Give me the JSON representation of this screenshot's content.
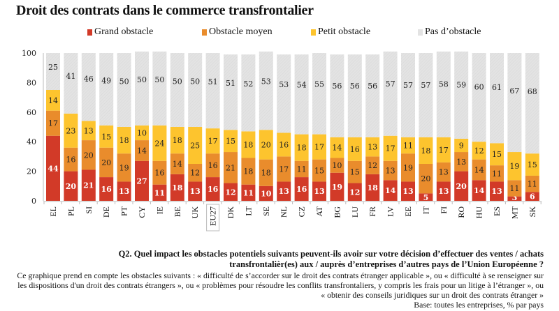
{
  "title": "Droit des contrats dans le commerce transfrontalier",
  "legend": [
    {
      "label": "Grand obstacle",
      "color": "#d23a28"
    },
    {
      "label": "Obstacle moyen",
      "color": "#e98c2c"
    },
    {
      "label": "Petit obstacle",
      "color": "#fdc42e"
    },
    {
      "label": "Pas d’obstacle",
      "color": "#e3e3e3"
    }
  ],
  "chart_data": {
    "type": "bar",
    "stacked": true,
    "title": "Droit des contrats dans le commerce transfrontalier",
    "xlabel": "",
    "ylabel": "",
    "ylim": [
      0,
      100
    ],
    "yticks": [
      0,
      20,
      40,
      60,
      80,
      100
    ],
    "grid": false,
    "legend_position": "top",
    "highlighted_category": "EU27",
    "categories": [
      "EL",
      "PL",
      "SI",
      "DE",
      "PT",
      "CY",
      "IE",
      "BE",
      "UK",
      "EU27",
      "DK",
      "LT",
      "SE",
      "NL",
      "CZ",
      "AT",
      "BG",
      "LU",
      "FR",
      "LV",
      "EE",
      "IT",
      "FI",
      "RO",
      "HU",
      "ES",
      "MT",
      "SK"
    ],
    "series": [
      {
        "name": "Grand obstacle",
        "color": "#d23a28",
        "label_color": "#ffffff",
        "values": [
          44,
          20,
          21,
          16,
          13,
          27,
          11,
          18,
          13,
          16,
          12,
          11,
          10,
          13,
          16,
          13,
          19,
          12,
          18,
          14,
          13,
          5,
          13,
          20,
          14,
          13,
          3,
          6
        ]
      },
      {
        "name": "Obstacle moyen",
        "color": "#e98c2c",
        "label_color": "#222222",
        "values": [
          17,
          16,
          20,
          20,
          19,
          14,
          16,
          14,
          12,
          16,
          21,
          18,
          18,
          17,
          11,
          15,
          10,
          15,
          12,
          13,
          19,
          20,
          13,
          13,
          14,
          11,
          11,
          11
        ]
      },
      {
        "name": "Petit obstacle",
        "color": "#fdc42e",
        "label_color": "#222222",
        "values": [
          14,
          23,
          13,
          15,
          18,
          10,
          24,
          18,
          25,
          17,
          15,
          18,
          20,
          16,
          18,
          17,
          14,
          16,
          13,
          17,
          11,
          18,
          17,
          9,
          12,
          15,
          19,
          15
        ]
      },
      {
        "name": "Pas d’obstacle",
        "color": "#e3e3e3",
        "label_color": "#222222",
        "values": [
          25,
          41,
          46,
          49,
          50,
          50,
          50,
          50,
          50,
          51,
          51,
          52,
          53,
          53,
          54,
          55,
          56,
          56,
          56,
          57,
          57,
          57,
          58,
          59,
          60,
          61,
          67,
          68
        ]
      }
    ]
  },
  "footer": {
    "question": "Q2. Quel impact les obstacles potentiels suivants peuvent-ils avoir sur votre décision d’effectuer des ventes / achats transfrontalièr(es) aux / auprès d’entreprises d’autres pays de l’Union Européenne ?",
    "note": "Ce graphique prend en compte les obstacles suivants : « difficulté de s’accorder sur le droit des contrats étranger applicable », ou « difficulté à se renseigner sur les dispositions d'un droit des contrats étrangers », ou « problèmes pour résoudre les conflits transfrontaliers, y compris les frais pour un litige à l’étranger », ou « obtenir des conseils juridiques sur un droit des contrats étranger »",
    "base": "Base: toutes les entreprises, % par pays"
  }
}
